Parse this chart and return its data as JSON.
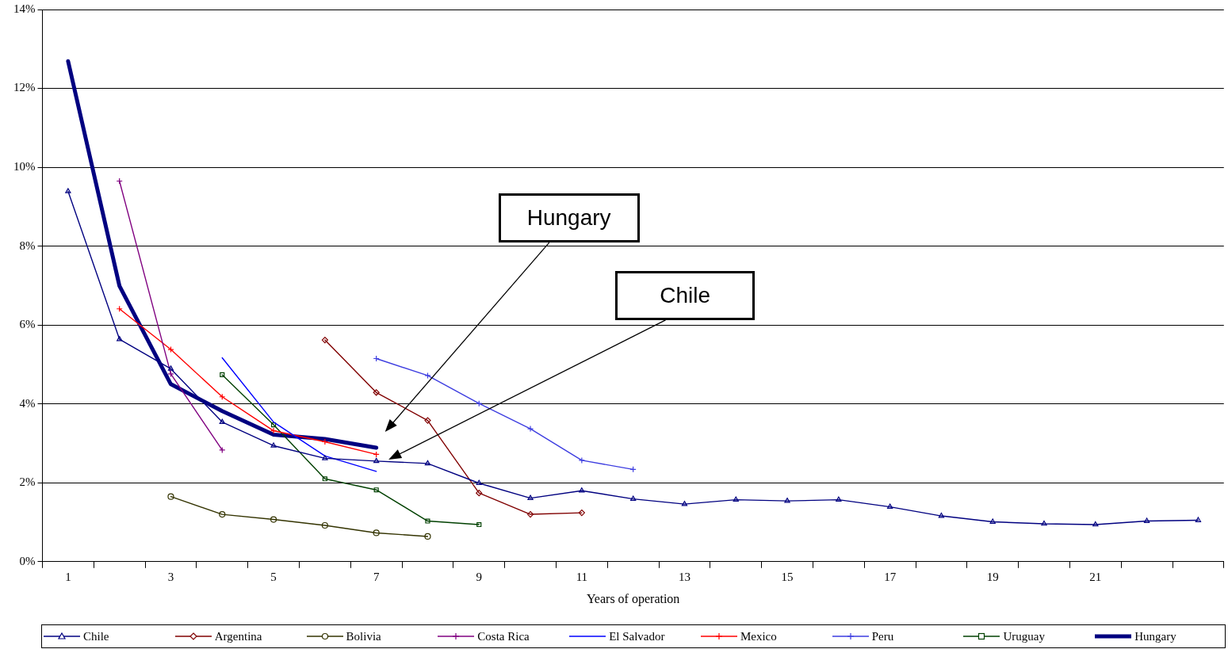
{
  "chart_data": {
    "type": "line",
    "xlabel": "Years of operation",
    "categories": [
      "1",
      null,
      "3",
      null,
      "5",
      null,
      "7",
      null,
      "9",
      null,
      "11",
      null,
      "13",
      null,
      "15",
      null,
      "17",
      null,
      "19",
      null,
      "21",
      null,
      null
    ],
    "ylim": [
      0,
      14
    ],
    "yticks": [
      {
        "value": 0,
        "label": "0%"
      },
      {
        "value": 2,
        "label": "2%"
      },
      {
        "value": 4,
        "label": "4%"
      },
      {
        "value": 6,
        "label": "6%"
      },
      {
        "value": 8,
        "label": "8%"
      },
      {
        "value": 10,
        "label": "10%"
      },
      {
        "value": 12,
        "label": "12%"
      },
      {
        "value": 14,
        "label": "14%"
      }
    ],
    "grid": "y",
    "legend": "bottom",
    "series": [
      {
        "name": "Chile",
        "color": "#000080",
        "marker": "triangle",
        "values": [
          9.39,
          5.64,
          4.89,
          3.54,
          2.94,
          2.62,
          2.55,
          2.49,
          1.99,
          1.61,
          1.8,
          1.59,
          1.46,
          1.57,
          1.54,
          1.57,
          1.39,
          1.16,
          1.01,
          0.96,
          0.94,
          1.03,
          1.05
        ]
      },
      {
        "name": "Argentina",
        "color": "#800000",
        "marker": "diamond",
        "values": [
          null,
          null,
          null,
          null,
          null,
          5.62,
          4.29,
          3.58,
          1.74,
          1.2,
          1.24,
          null,
          null,
          null,
          null,
          null,
          null,
          null,
          null,
          null,
          null,
          null,
          null
        ]
      },
      {
        "name": "Bolivia",
        "color": "#333300",
        "marker": "circle",
        "values": [
          null,
          null,
          1.65,
          1.2,
          1.07,
          0.92,
          0.73,
          0.64,
          null,
          null,
          null,
          null,
          null,
          null,
          null,
          null,
          null,
          null,
          null,
          null,
          null,
          null,
          null
        ]
      },
      {
        "name": "Costa Rica",
        "color": "#800080",
        "marker": "cross",
        "values": [
          null,
          9.65,
          4.76,
          2.83,
          null,
          null,
          null,
          null,
          null,
          null,
          null,
          null,
          null,
          null,
          null,
          null,
          null,
          null,
          null,
          null,
          null,
          null,
          null
        ]
      },
      {
        "name": "El Salvador",
        "color": "#0000ff",
        "marker": "none",
        "values": [
          null,
          null,
          null,
          5.17,
          3.54,
          2.68,
          2.29,
          null,
          null,
          null,
          null,
          null,
          null,
          null,
          null,
          null,
          null,
          null,
          null,
          null,
          null,
          null,
          null
        ]
      },
      {
        "name": "Mexico",
        "color": "#ff0000",
        "marker": "cross",
        "values": [
          null,
          6.41,
          5.38,
          4.18,
          3.32,
          3.04,
          2.72,
          null,
          null,
          null,
          null,
          null,
          null,
          null,
          null,
          null,
          null,
          null,
          null,
          null,
          null,
          null,
          null
        ]
      },
      {
        "name": "Peru",
        "color": "#3d3de0",
        "marker": "cross",
        "values": [
          null,
          null,
          null,
          null,
          null,
          null,
          5.15,
          4.72,
          4.01,
          3.37,
          2.57,
          2.34,
          null,
          null,
          null,
          null,
          null,
          null,
          null,
          null,
          null,
          null,
          null
        ]
      },
      {
        "name": "Uruguay",
        "color": "#004000",
        "marker": "square",
        "values": [
          null,
          null,
          null,
          4.74,
          3.47,
          2.1,
          1.82,
          1.03,
          0.94,
          null,
          null,
          null,
          null,
          null,
          null,
          null,
          null,
          null,
          null,
          null,
          null,
          null,
          null
        ]
      },
      {
        "name": "Hungary",
        "color": "#000080",
        "marker": "none",
        "values": [
          12.69,
          6.99,
          4.5,
          3.82,
          3.22,
          3.11,
          2.89,
          null,
          null,
          null,
          null,
          null,
          null,
          null,
          null,
          null,
          null,
          null,
          null,
          null,
          null,
          null,
          null
        ]
      }
    ],
    "annotations": [
      "Hungary",
      "Chile"
    ]
  }
}
